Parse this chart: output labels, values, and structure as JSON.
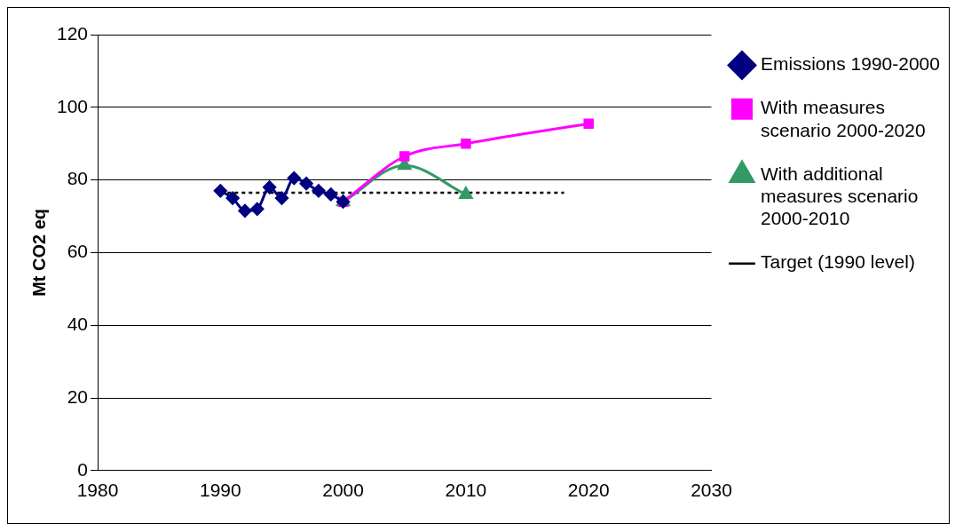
{
  "chart_data": {
    "type": "line",
    "ylabel": "Mt CO2 eq",
    "xlim": [
      1980,
      2030
    ],
    "xticks": [
      1980,
      1990,
      2000,
      2010,
      2020,
      2030
    ],
    "ylim": [
      0,
      120
    ],
    "yticks": [
      0,
      20,
      40,
      60,
      80,
      100,
      120
    ],
    "grid": "y",
    "legend": "right",
    "series": [
      {
        "name": "Emissions 1990-2000",
        "color": "#000080",
        "marker": "diamond",
        "line_style": "solid",
        "x": [
          1990,
          1991,
          1992,
          1993,
          1994,
          1995,
          1996,
          1997,
          1998,
          1999,
          2000
        ],
        "values": [
          77,
          75,
          71.5,
          72,
          78,
          75,
          80.5,
          79,
          77,
          76,
          74
        ]
      },
      {
        "name": "With measures scenario 2000-2020",
        "color": "#ff00ff",
        "marker": "square",
        "line_style": "solid",
        "x": [
          2000,
          2005,
          2010,
          2020
        ],
        "values": [
          74,
          86.5,
          90,
          95.5
        ]
      },
      {
        "name": "With additional measures scenario 2000-2010",
        "color": "#339966",
        "marker": "triangle",
        "line_style": "solid",
        "x": [
          2000,
          2005,
          2010
        ],
        "values": [
          74,
          84,
          76
        ]
      },
      {
        "name": "Target (1990 level)",
        "color": "#000000",
        "marker": "none",
        "line_style": "dotted",
        "x": [
          1990,
          2018
        ],
        "values": [
          76.5,
          76.5
        ]
      }
    ]
  }
}
